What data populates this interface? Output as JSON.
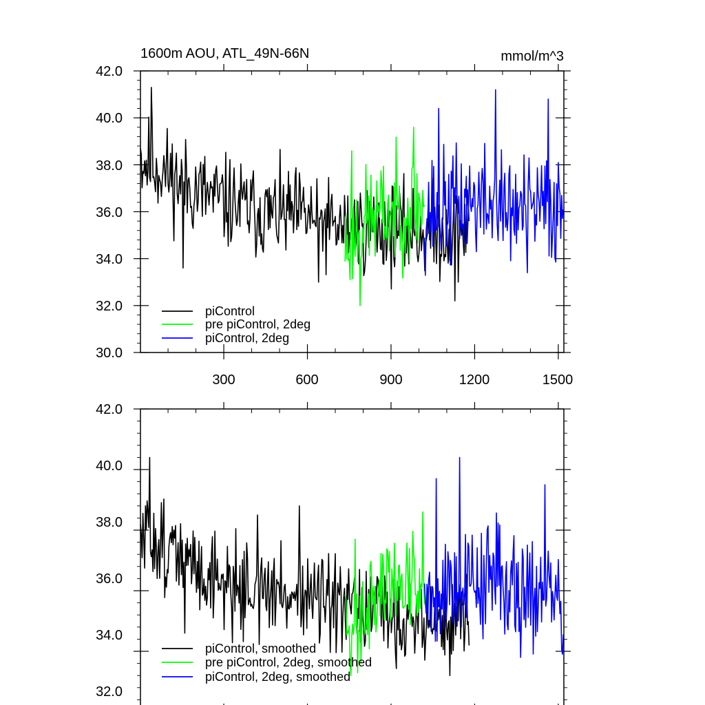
{
  "chart_data": [
    {
      "type": "line",
      "title": "1600m AOU, ATL_49N-66N",
      "units": "mmol/m^3",
      "xlim": [
        1,
        1520
      ],
      "ylim": [
        30.0,
        42.0
      ],
      "xticks": [
        300,
        600,
        900,
        1200,
        1500
      ],
      "xtick_labels": [
        "300",
        "600",
        "900",
        "1200",
        "1500"
      ],
      "yticks": [
        30,
        32,
        34,
        36,
        38,
        40,
        42
      ],
      "ytick_labels": [
        "30.0",
        "32.0",
        "34.0",
        "36.0",
        "38.0",
        "40.0",
        "42.0"
      ],
      "legend_position": "bottom-left",
      "series": [
        {
          "name": "piControl",
          "color": "#000000",
          "x_range": [
            1,
            1180
          ],
          "mean_anchors": [
            [
              1,
              38.2
            ],
            [
              50,
              38.0
            ],
            [
              150,
              37.2
            ],
            [
              300,
              36.4
            ],
            [
              450,
              35.9
            ],
            [
              600,
              35.8
            ],
            [
              700,
              35.3
            ],
            [
              850,
              35.3
            ],
            [
              1000,
              35.1
            ],
            [
              1180,
              35.2
            ]
          ],
          "noise": 1.3,
          "peak_points": [
            [
              2,
              38.7
            ],
            [
              40,
              41.3
            ],
            [
              155,
              33.6
            ],
            [
              430,
              36.6
            ],
            [
              640,
              33.0
            ],
            [
              1130,
              32.2
            ]
          ],
          "seed": 11
        },
        {
          "name": "pre piControl, 2deg",
          "color": "#00ff00",
          "x_range": [
            735,
            1020
          ],
          "mean_anchors": [
            [
              735,
              34.6
            ],
            [
              800,
              35.6
            ],
            [
              900,
              36.0
            ],
            [
              1020,
              36.3
            ]
          ],
          "noise": 1.5,
          "peak_points": [
            [
              760,
              38.6
            ],
            [
              788,
              32.0
            ],
            [
              980,
              39.6
            ]
          ],
          "seed": 23
        },
        {
          "name": "piControl, 2deg",
          "color": "#0000ff",
          "x_range": [
            1020,
            1520
          ],
          "mean_anchors": [
            [
              1020,
              36.0
            ],
            [
              1200,
              36.4
            ],
            [
              1350,
              36.0
            ],
            [
              1520,
              36.2
            ]
          ],
          "noise": 1.6,
          "peak_points": [
            [
              1070,
              40.4
            ],
            [
              1275,
              41.2
            ],
            [
              1465,
              40.8
            ],
            [
              1390,
              33.4
            ]
          ],
          "seed": 37
        }
      ]
    },
    {
      "type": "line",
      "title": "",
      "xlim": [
        1,
        1520
      ],
      "ylim": [
        32.0,
        42.0
      ],
      "yticks": [
        32,
        34,
        36,
        38,
        40,
        42
      ],
      "ytick_labels": [
        "32.0",
        "34.0",
        "36.0",
        "38.0",
        "40.0",
        "42.0"
      ],
      "legend_position": "bottom-left",
      "series": [
        {
          "name": "piControl, smoothed",
          "color": "#000000",
          "x_range": [
            1,
            1180
          ],
          "mean_anchors": [
            [
              1,
              37.6
            ],
            [
              50,
              37.8
            ],
            [
              150,
              37.0
            ],
            [
              300,
              36.3
            ],
            [
              450,
              35.9
            ],
            [
              600,
              35.9
            ],
            [
              700,
              35.3
            ],
            [
              850,
              35.3
            ],
            [
              1000,
              35.0
            ],
            [
              1180,
              35.1
            ]
          ],
          "noise": 1.0,
          "peak_points": [
            [
              35,
              40.4
            ],
            [
              160,
              34.6
            ],
            [
              420,
              38.5
            ],
            [
              570,
              38.8
            ],
            [
              1110,
              33.2
            ]
          ],
          "seed": 51
        },
        {
          "name": "pre piControl, 2deg, smoothed",
          "color": "#00ff00",
          "x_range": [
            735,
            1020
          ],
          "mean_anchors": [
            [
              735,
              34.6
            ],
            [
              800,
              35.6
            ],
            [
              900,
              36.2
            ],
            [
              1020,
              36.6
            ]
          ],
          "noise": 1.2,
          "peak_points": [
            [
              755,
              33.2
            ],
            [
              770,
              37.7
            ],
            [
              1015,
              38.6
            ]
          ],
          "seed": 63
        },
        {
          "name": "piControl, 2deg, smoothed",
          "color": "#0000ff",
          "x_range": [
            1020,
            1520
          ],
          "mean_anchors": [
            [
              1020,
              36.0
            ],
            [
              1200,
              36.4
            ],
            [
              1350,
              36.4
            ],
            [
              1520,
              35.5
            ]
          ],
          "noise": 1.3,
          "peak_points": [
            [
              1145,
              40.4
            ],
            [
              1062,
              39.7
            ],
            [
              1452,
              39.5
            ],
            [
              1365,
              33.8
            ]
          ],
          "seed": 79
        }
      ]
    }
  ]
}
